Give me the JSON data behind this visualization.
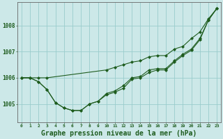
{
  "background_color": "#cce8e8",
  "grid_color": "#99cccc",
  "line_color": "#1e5c1e",
  "marker_color": "#1e5c1e",
  "xlabel": "Graphe pression niveau de la mer (hPa)",
  "xlabel_fontsize": 7.0,
  "ylabel_values": [
    1005,
    1006,
    1007,
    1008
  ],
  "xlim": [
    -0.5,
    23.5
  ],
  "ylim": [
    1004.3,
    1008.9
  ],
  "xtick_labels": [
    "0",
    "1",
    "2",
    "3",
    "4",
    "5",
    "6",
    "7",
    "8",
    "9",
    "10",
    "11",
    "12",
    "13",
    "14",
    "15",
    "16",
    "17",
    "18",
    "19",
    "20",
    "21",
    "22",
    "23"
  ],
  "series1": [
    [
      0,
      1006.0
    ],
    [
      1,
      1006.0
    ],
    [
      2,
      1006.0
    ],
    [
      3,
      1006.0
    ],
    [
      10,
      1006.3
    ],
    [
      11,
      1006.4
    ],
    [
      12,
      1006.5
    ],
    [
      13,
      1006.6
    ],
    [
      14,
      1006.65
    ],
    [
      15,
      1006.8
    ],
    [
      16,
      1006.85
    ],
    [
      17,
      1006.85
    ],
    [
      18,
      1007.1
    ],
    [
      19,
      1007.2
    ],
    [
      20,
      1007.5
    ],
    [
      21,
      1007.75
    ],
    [
      22,
      1008.25
    ],
    [
      23,
      1008.65
    ]
  ],
  "series2": [
    [
      0,
      1006.0
    ],
    [
      1,
      1006.0
    ],
    [
      2,
      1005.85
    ],
    [
      3,
      1005.55
    ],
    [
      4,
      1005.05
    ],
    [
      5,
      1004.85
    ],
    [
      6,
      1004.75
    ],
    [
      7,
      1004.75
    ],
    [
      8,
      1005.0
    ],
    [
      9,
      1005.1
    ],
    [
      10,
      1005.35
    ],
    [
      11,
      1005.45
    ],
    [
      12,
      1005.6
    ],
    [
      13,
      1005.95
    ],
    [
      14,
      1006.0
    ],
    [
      15,
      1006.2
    ],
    [
      16,
      1006.3
    ],
    [
      17,
      1006.3
    ],
    [
      18,
      1006.6
    ],
    [
      19,
      1006.85
    ],
    [
      20,
      1007.05
    ],
    [
      21,
      1007.45
    ],
    [
      22,
      1008.2
    ],
    [
      23,
      1008.65
    ]
  ],
  "series3": [
    [
      0,
      1006.0
    ],
    [
      1,
      1006.0
    ],
    [
      2,
      1005.85
    ],
    [
      3,
      1005.55
    ],
    [
      4,
      1005.05
    ],
    [
      5,
      1004.85
    ],
    [
      6,
      1004.75
    ],
    [
      7,
      1004.75
    ],
    [
      8,
      1005.0
    ],
    [
      9,
      1005.1
    ],
    [
      10,
      1005.4
    ],
    [
      11,
      1005.5
    ],
    [
      12,
      1005.7
    ],
    [
      13,
      1006.0
    ],
    [
      14,
      1006.05
    ],
    [
      15,
      1006.3
    ],
    [
      16,
      1006.35
    ],
    [
      17,
      1006.35
    ],
    [
      18,
      1006.65
    ],
    [
      19,
      1006.9
    ],
    [
      20,
      1007.1
    ],
    [
      21,
      1007.5
    ],
    [
      22,
      1008.2
    ],
    [
      23,
      1008.65
    ]
  ]
}
